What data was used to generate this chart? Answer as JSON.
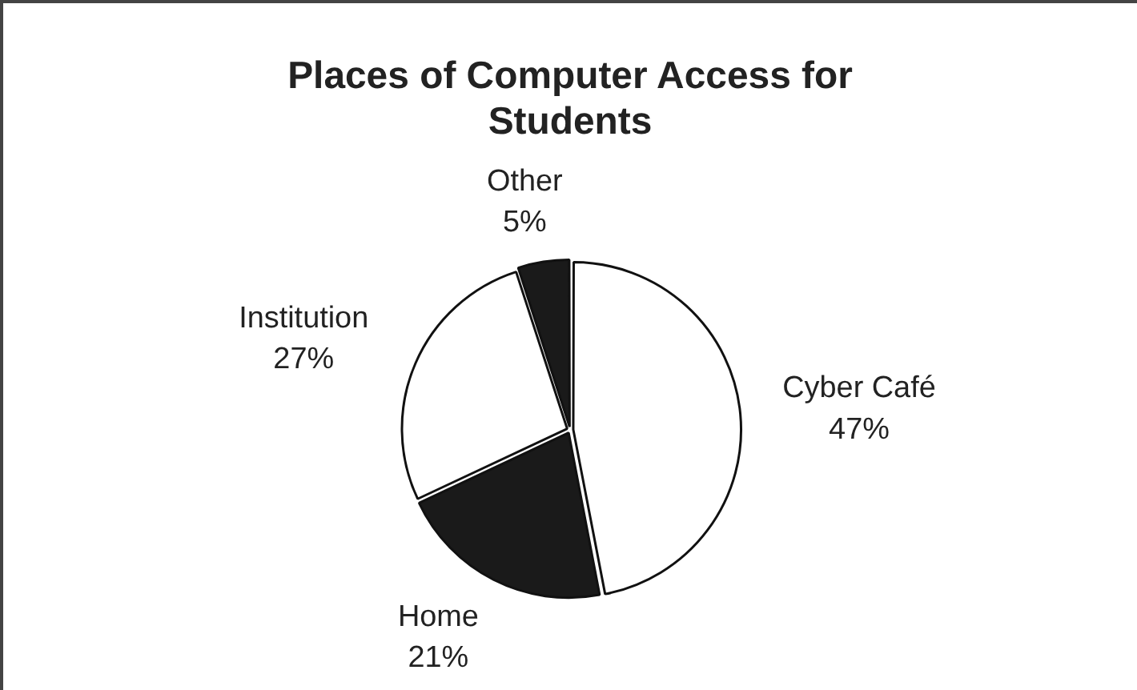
{
  "chart_data": {
    "type": "pie",
    "title": "Places of Computer Access for Students",
    "categories": [
      "Cyber Café",
      "Home",
      "Institution",
      "Other"
    ],
    "values": [
      47,
      21,
      27,
      5
    ],
    "value_labels": [
      "47%",
      "21%",
      "27%",
      "5%"
    ],
    "colors": [
      "#ffffff",
      "#1a1a1a",
      "#ffffff",
      "#1a1a1a"
    ],
    "legend": false
  }
}
